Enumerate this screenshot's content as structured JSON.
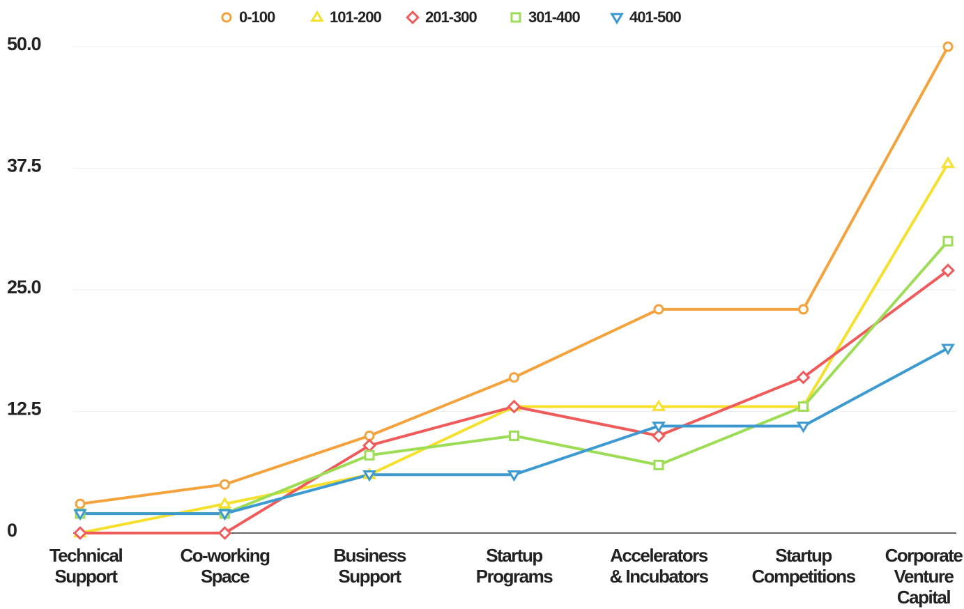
{
  "chart_data": {
    "type": "line",
    "categories": [
      "Technical Support",
      "Co-working Space",
      "Business Support",
      "Startup Programs",
      "Accelerators & Incubators",
      "Startup Competitions",
      "Corporate Venture Capital"
    ],
    "series": [
      {
        "name": "0-100",
        "color": "#f4a23c",
        "marker": "circle",
        "values": [
          3,
          5,
          10,
          16,
          23,
          23,
          50
        ]
      },
      {
        "name": "101-200",
        "color": "#f5e02e",
        "marker": "triangle",
        "values": [
          0,
          3,
          6,
          13,
          13,
          13,
          38
        ]
      },
      {
        "name": "201-300",
        "color": "#ef5a5a",
        "marker": "diamond",
        "values": [
          0,
          0,
          9,
          13,
          10,
          16,
          27
        ]
      },
      {
        "name": "301-400",
        "color": "#9ddd55",
        "marker": "square",
        "values": [
          2,
          2,
          8,
          10,
          7,
          13,
          30
        ]
      },
      {
        "name": "401-500",
        "color": "#3d9ad1",
        "marker": "triangle-down",
        "values": [
          2,
          2,
          6,
          6,
          11,
          11,
          19
        ]
      }
    ],
    "ylim": [
      0,
      50
    ],
    "yticks": [
      0,
      12.5,
      {
        "value": 25,
        "label": "25.0"
      },
      37.5,
      {
        "value": 50,
        "label": "50.0"
      }
    ],
    "grid": true,
    "legend": "top"
  }
}
